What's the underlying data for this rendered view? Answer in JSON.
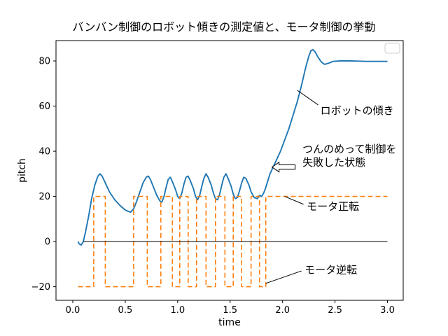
{
  "chart_data": {
    "type": "line",
    "title": "バンバン制御のロボット傾きの測定値と、モータ制御の挙動",
    "xlabel": "time",
    "ylabel": "pitch",
    "xlim": [
      -0.16,
      3.15
    ],
    "ylim": [
      -26,
      89
    ],
    "xticks": [
      0.0,
      0.5,
      1.0,
      1.5,
      2.0,
      2.5,
      3.0
    ],
    "xtick_labels": [
      "0.0",
      "0.5",
      "1.0",
      "1.5",
      "2.0",
      "2.5",
      "3.0"
    ],
    "yticks": [
      -20,
      0,
      20,
      40,
      60,
      80
    ],
    "ytick_labels": [
      "−20",
      "0",
      "20",
      "40",
      "60",
      "80"
    ],
    "grid": false,
    "legend": {
      "visible": true,
      "empty": true,
      "position": "upper right"
    },
    "colors": {
      "pitch": "#1f77b4",
      "motor": "#ff7f0e",
      "baseline": "#000000"
    },
    "series": [
      {
        "name": "pitch",
        "label": "ロボットの傾き",
        "color": "#1f77b4",
        "width": 1.9,
        "points": [
          [
            0.05,
            0
          ],
          [
            0.06,
            -1
          ],
          [
            0.08,
            -1.5
          ],
          [
            0.1,
            0
          ],
          [
            0.12,
            4
          ],
          [
            0.15,
            11
          ],
          [
            0.18,
            19
          ],
          [
            0.21,
            25
          ],
          [
            0.24,
            29
          ],
          [
            0.26,
            30
          ],
          [
            0.28,
            29
          ],
          [
            0.31,
            26
          ],
          [
            0.35,
            22
          ],
          [
            0.4,
            18.5
          ],
          [
            0.45,
            16
          ],
          [
            0.5,
            14
          ],
          [
            0.55,
            13
          ],
          [
            0.58,
            14.5
          ],
          [
            0.61,
            18
          ],
          [
            0.64,
            22
          ],
          [
            0.67,
            26
          ],
          [
            0.7,
            28.5
          ],
          [
            0.72,
            29
          ],
          [
            0.74,
            27.5
          ],
          [
            0.77,
            24
          ],
          [
            0.8,
            20.5
          ],
          [
            0.83,
            18
          ],
          [
            0.85,
            17.5
          ],
          [
            0.87,
            20
          ],
          [
            0.89,
            24
          ],
          [
            0.91,
            27.5
          ],
          [
            0.93,
            28.5
          ],
          [
            0.95,
            26.5
          ],
          [
            0.98,
            23
          ],
          [
            1.0,
            20
          ],
          [
            1.02,
            19
          ],
          [
            1.04,
            21.5
          ],
          [
            1.06,
            25.5
          ],
          [
            1.08,
            28.5
          ],
          [
            1.1,
            29
          ],
          [
            1.12,
            27
          ],
          [
            1.15,
            23.5
          ],
          [
            1.17,
            20
          ],
          [
            1.19,
            18.5
          ],
          [
            1.21,
            20.5
          ],
          [
            1.23,
            24.5
          ],
          [
            1.25,
            28
          ],
          [
            1.27,
            30
          ],
          [
            1.29,
            28.5
          ],
          [
            1.32,
            25
          ],
          [
            1.34,
            21.5
          ],
          [
            1.36,
            19
          ],
          [
            1.38,
            18.5
          ],
          [
            1.4,
            21
          ],
          [
            1.42,
            25
          ],
          [
            1.44,
            28.5
          ],
          [
            1.46,
            30
          ],
          [
            1.48,
            28
          ],
          [
            1.51,
            24.5
          ],
          [
            1.53,
            21
          ],
          [
            1.55,
            19
          ],
          [
            1.57,
            19.5
          ],
          [
            1.59,
            22.5
          ],
          [
            1.61,
            26
          ],
          [
            1.63,
            28.5
          ],
          [
            1.65,
            28
          ],
          [
            1.68,
            25
          ],
          [
            1.7,
            22
          ],
          [
            1.73,
            19.5
          ],
          [
            1.76,
            19
          ],
          [
            1.78,
            20.5
          ],
          [
            1.8,
            20
          ],
          [
            1.82,
            21.5
          ],
          [
            1.84,
            24
          ],
          [
            1.86,
            27
          ],
          [
            1.88,
            30
          ],
          [
            1.91,
            33
          ],
          [
            1.94,
            36
          ],
          [
            1.98,
            40
          ],
          [
            2.02,
            45
          ],
          [
            2.06,
            50
          ],
          [
            2.1,
            56
          ],
          [
            2.14,
            62
          ],
          [
            2.18,
            69
          ],
          [
            2.22,
            77
          ],
          [
            2.25,
            82
          ],
          [
            2.27,
            84.5
          ],
          [
            2.29,
            85
          ],
          [
            2.31,
            84
          ],
          [
            2.34,
            81.5
          ],
          [
            2.37,
            79.5
          ],
          [
            2.4,
            78.5
          ],
          [
            2.44,
            79
          ],
          [
            2.48,
            79.8
          ],
          [
            2.55,
            80
          ],
          [
            2.65,
            80
          ],
          [
            2.8,
            79.8
          ],
          [
            3.0,
            79.8
          ]
        ]
      },
      {
        "name": "motor",
        "label": "モータ制御",
        "color": "#ff7f0e",
        "width": 1.6,
        "dash": "7 4",
        "points": [
          [
            0.05,
            -20
          ],
          [
            0.2,
            -20
          ],
          [
            0.2,
            20
          ],
          [
            0.31,
            20
          ],
          [
            0.31,
            -20
          ],
          [
            0.58,
            -20
          ],
          [
            0.58,
            20
          ],
          [
            0.71,
            20
          ],
          [
            0.71,
            -20
          ],
          [
            0.84,
            -20
          ],
          [
            0.84,
            20
          ],
          [
            0.95,
            20
          ],
          [
            0.95,
            -20
          ],
          [
            1.02,
            -20
          ],
          [
            1.02,
            20
          ],
          [
            1.1,
            20
          ],
          [
            1.1,
            -20
          ],
          [
            1.18,
            -20
          ],
          [
            1.18,
            20
          ],
          [
            1.27,
            20
          ],
          [
            1.27,
            -20
          ],
          [
            1.36,
            -20
          ],
          [
            1.36,
            20
          ],
          [
            1.45,
            20
          ],
          [
            1.45,
            -20
          ],
          [
            1.53,
            -20
          ],
          [
            1.53,
            20
          ],
          [
            1.61,
            20
          ],
          [
            1.61,
            -20
          ],
          [
            1.7,
            -20
          ],
          [
            1.7,
            20
          ],
          [
            1.78,
            20
          ],
          [
            1.78,
            -20
          ],
          [
            1.84,
            -20
          ],
          [
            1.84,
            20
          ],
          [
            3.0,
            20
          ]
        ]
      },
      {
        "name": "zero-baseline",
        "label": "",
        "color": "#000000",
        "width": 1,
        "points": [
          [
            0.1,
            0
          ],
          [
            3.0,
            0
          ]
        ]
      }
    ],
    "annotations": [
      {
        "id": "robot-tilt-label",
        "text": "ロボットの傾き",
        "x": 2.36,
        "y": 58,
        "leader": [
          [
            2.14,
            67
          ],
          [
            2.34,
            60.5
          ]
        ]
      },
      {
        "id": "failure-label",
        "lines": [
          "つんのめって制御を",
          "失敗した状態"
        ],
        "x": 2.19,
        "y": 41,
        "block_arrow": {
          "tip": [
            1.9,
            33
          ],
          "tail": [
            2.12,
            33
          ]
        }
      },
      {
        "id": "motor-forward-label",
        "text": "モータ正転",
        "x": 2.23,
        "y": 15.5,
        "leader": [
          [
            2.02,
            20
          ],
          [
            2.2,
            16.5
          ]
        ]
      },
      {
        "id": "motor-reverse-label",
        "text": "モータ逆転",
        "x": 2.21,
        "y": -12.5,
        "leader": [
          [
            1.84,
            -18.5
          ],
          [
            2.18,
            -13
          ]
        ]
      }
    ]
  }
}
